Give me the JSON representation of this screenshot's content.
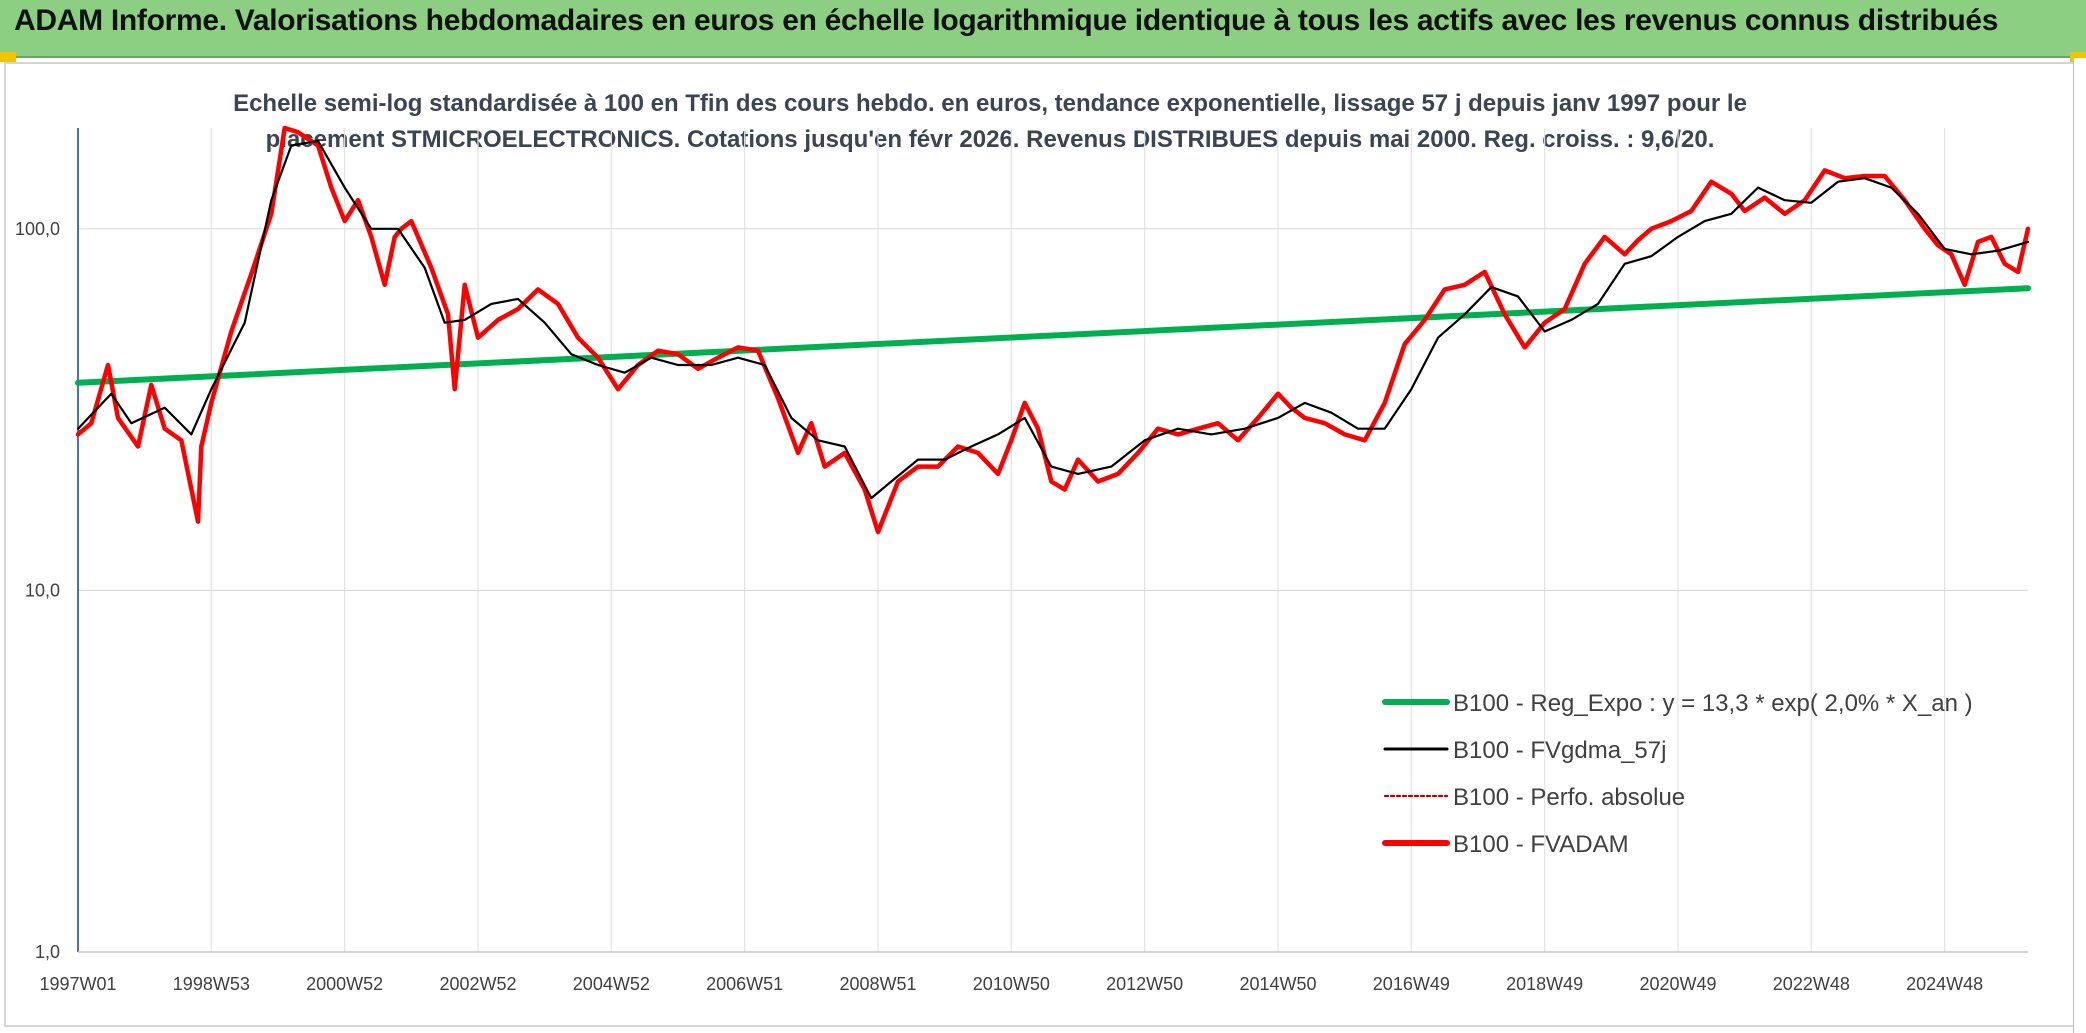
{
  "banner": {
    "title": "ADAM Informe. Valorisations hebdomadaires en euros en échelle logarithmique identique à tous les actifs avec les revenus connus distribués"
  },
  "chart_data": {
    "type": "line",
    "title_line1": "Echelle semi-log standardisée à 100 en Tfin des cours hebdo. en euros, tendance exponentielle, lissage 57 j depuis janv 1997 pour le",
    "title_line2": "placement STMICROELECTRONICS. Cotations jusqu'en févr 2026. Revenus DISTRIBUES depuis mai 2000. Reg. croiss. : 9,6/20.",
    "y_scale": "log",
    "ylim": [
      1,
      190
    ],
    "y_ticks": [
      {
        "value": 1,
        "label": "1,0"
      },
      {
        "value": 10,
        "label": "10,0"
      },
      {
        "value": 100,
        "label": "100,0"
      }
    ],
    "xlim": [
      1997.0,
      2026.25
    ],
    "x_ticks": [
      {
        "value": 1997.0,
        "label": "1997W01"
      },
      {
        "value": 1999.0,
        "label": "1998W53"
      },
      {
        "value": 2001.0,
        "label": "2000W52"
      },
      {
        "value": 2003.0,
        "label": "2002W52"
      },
      {
        "value": 2005.0,
        "label": "2004W52"
      },
      {
        "value": 2007.0,
        "label": "2006W51"
      },
      {
        "value": 2009.0,
        "label": "2008W51"
      },
      {
        "value": 2011.0,
        "label": "2010W50"
      },
      {
        "value": 2013.0,
        "label": "2012W50"
      },
      {
        "value": 2015.0,
        "label": "2014W50"
      },
      {
        "value": 2017.0,
        "label": "2016W49"
      },
      {
        "value": 2019.0,
        "label": "2018W49"
      },
      {
        "value": 2021.0,
        "label": "2020W49"
      },
      {
        "value": 2023.0,
        "label": "2022W48"
      },
      {
        "value": 2025.0,
        "label": "2024W48"
      }
    ],
    "grid": true,
    "legend_position": "bottom-right",
    "series": [
      {
        "name": "B100 - Reg_Expo : y = 13,3 * exp( 2,0% *  X_an )",
        "color": "#00b050",
        "style": "thick",
        "x": [
          1997.0,
          2026.25
        ],
        "y": [
          37.5,
          68.5
        ]
      },
      {
        "name": "B100 - FVgdma_57j",
        "color": "#000000",
        "style": "thin",
        "x": [
          1997.0,
          1997.5,
          1997.8,
          1998.3,
          1998.7,
          1999.0,
          1999.5,
          1999.9,
          2000.2,
          2000.6,
          2001.0,
          2001.4,
          2001.8,
          2002.2,
          2002.5,
          2002.8,
          2003.2,
          2003.6,
          2004.0,
          2004.4,
          2004.8,
          2005.2,
          2005.6,
          2006.0,
          2006.5,
          2006.9,
          2007.3,
          2007.7,
          2008.1,
          2008.5,
          2008.9,
          2009.2,
          2009.6,
          2010.0,
          2010.4,
          2010.8,
          2011.2,
          2011.6,
          2012.0,
          2012.5,
          2013.0,
          2013.5,
          2014.0,
          2014.5,
          2015.0,
          2015.4,
          2015.8,
          2016.2,
          2016.6,
          2017.0,
          2017.4,
          2017.8,
          2018.2,
          2018.6,
          2019.0,
          2019.4,
          2019.8,
          2020.2,
          2020.6,
          2021.0,
          2021.4,
          2021.8,
          2022.2,
          2022.6,
          2023.0,
          2023.4,
          2023.8,
          2024.2,
          2024.6,
          2025.0,
          2025.4,
          2025.8,
          2026.25
        ],
        "y": [
          28,
          35,
          29,
          32,
          27,
          36,
          55,
          120,
          170,
          175,
          130,
          100,
          100,
          78,
          55,
          56,
          62,
          64,
          55,
          45,
          42,
          40,
          44,
          42,
          42,
          44,
          42,
          30,
          26,
          25,
          18,
          20,
          23,
          23,
          25,
          27,
          30,
          22,
          21,
          22,
          26,
          28,
          27,
          28,
          30,
          33,
          31,
          28,
          28,
          36,
          50,
          58,
          69,
          65,
          52,
          56,
          62,
          80,
          84,
          95,
          105,
          110,
          130,
          120,
          118,
          135,
          138,
          130,
          110,
          88,
          85,
          87,
          92
        ]
      },
      {
        "name": "B100 - Perfo. absolue",
        "color": "#c00000",
        "style": "dotted",
        "x": [],
        "y": []
      },
      {
        "name": "B100 - FVADAM",
        "color": "#ff0000",
        "style": "thick",
        "x": [
          1997.0,
          1997.2,
          1997.45,
          1997.6,
          1997.9,
          1998.1,
          1998.3,
          1998.55,
          1998.8,
          1998.85,
          1999.0,
          1999.3,
          1999.6,
          1999.9,
          2000.1,
          2000.3,
          2000.6,
          2000.8,
          2001.0,
          2001.2,
          2001.4,
          2001.6,
          2001.75,
          2001.85,
          2002.0,
          2002.3,
          2002.55,
          2002.65,
          2002.8,
          2003.0,
          2003.3,
          2003.6,
          2003.9,
          2004.2,
          2004.5,
          2004.8,
          2005.1,
          2005.4,
          2005.7,
          2006.0,
          2006.3,
          2006.6,
          2006.9,
          2007.2,
          2007.5,
          2007.8,
          2008.0,
          2008.2,
          2008.5,
          2008.8,
          2009.0,
          2009.3,
          2009.6,
          2009.9,
          2010.2,
          2010.5,
          2010.8,
          2011.0,
          2011.2,
          2011.4,
          2011.6,
          2011.8,
          2012.0,
          2012.3,
          2012.6,
          2012.9,
          2013.2,
          2013.5,
          2013.8,
          2014.1,
          2014.4,
          2014.7,
          2015.0,
          2015.2,
          2015.4,
          2015.7,
          2016.0,
          2016.3,
          2016.6,
          2016.9,
          2017.2,
          2017.5,
          2017.8,
          2018.1,
          2018.4,
          2018.7,
          2019.0,
          2019.3,
          2019.6,
          2019.9,
          2020.2,
          2020.4,
          2020.6,
          2020.9,
          2021.2,
          2021.5,
          2021.8,
          2022.0,
          2022.3,
          2022.6,
          2022.9,
          2023.2,
          2023.5,
          2023.8,
          2024.1,
          2024.4,
          2024.7,
          2024.9,
          2025.1,
          2025.3,
          2025.5,
          2025.7,
          2025.9,
          2026.1,
          2026.25
        ],
        "y": [
          27,
          29,
          42,
          30,
          25,
          37,
          28,
          26,
          15.5,
          25,
          33,
          52,
          75,
          110,
          190,
          185,
          170,
          130,
          105,
          120,
          95,
          70,
          95,
          100,
          105,
          78,
          58,
          36,
          70,
          50,
          56,
          60,
          68,
          62,
          50,
          44,
          36,
          42,
          46,
          45,
          41,
          44,
          47,
          46,
          34,
          24,
          29,
          22,
          24,
          19,
          14.5,
          20,
          22,
          22,
          25,
          24,
          21,
          26,
          33,
          28,
          20,
          19,
          23,
          20,
          21,
          24,
          28,
          27,
          28,
          29,
          26,
          30,
          35,
          32,
          30,
          29,
          27,
          26,
          33,
          48,
          56,
          68,
          70,
          76,
          58,
          47,
          55,
          60,
          80,
          95,
          85,
          93,
          100,
          105,
          112,
          135,
          125,
          112,
          122,
          110,
          120,
          145,
          138,
          140,
          140,
          120,
          100,
          90,
          85,
          70,
          92,
          95,
          80,
          76,
          100
        ]
      }
    ]
  }
}
